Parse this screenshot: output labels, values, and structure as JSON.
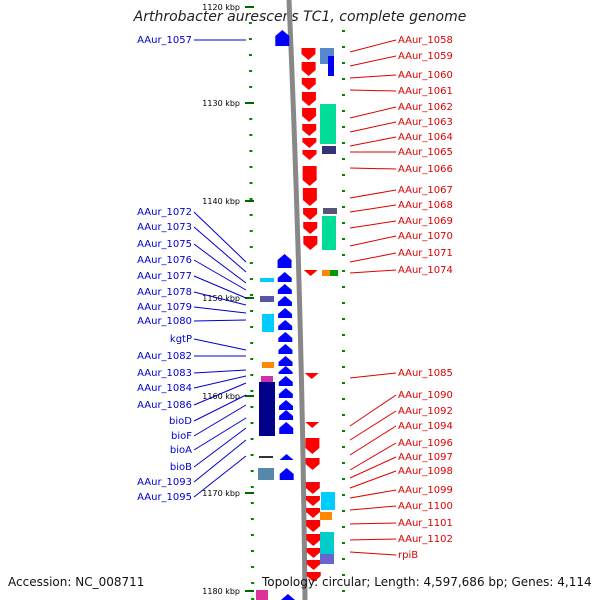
{
  "title": "Arthrobacter aurescens TC1, complete genome",
  "footer": {
    "accession": "Accession: NC_008711",
    "topology": "Topology: circular; Length: 4,597,686 bp; Genes: 4,114"
  },
  "ticks": [
    "1120 kbp",
    "1130 kbp",
    "1140 kbp",
    "1150 kbp",
    "1160 kbp",
    "1170 kbp",
    "1180 kbp"
  ],
  "left_genes": [
    "AAur_1057",
    "AAur_1072",
    "AAur_1073",
    "AAur_1075",
    "AAur_1076",
    "AAur_1077",
    "AAur_1078",
    "AAur_1079",
    "AAur_1080",
    "kgtP",
    "AAur_1082",
    "AAur_1083",
    "AAur_1084",
    "AAur_1086",
    "bioD",
    "bioF",
    "bioA",
    "bioB",
    "AAur_1093",
    "AAur_1095"
  ],
  "right_genes": [
    "AAur_1058",
    "AAur_1059",
    "AAur_1060",
    "AAur_1061",
    "AAur_1062",
    "AAur_1063",
    "AAur_1064",
    "AAur_1065",
    "AAur_1066",
    "AAur_1067",
    "AAur_1068",
    "AAur_1069",
    "AAur_1070",
    "AAur_1071",
    "AAur_1074",
    "AAur_1085",
    "AAur_1090",
    "AAur_1092",
    "AAur_1094",
    "AAur_1096",
    "AAur_1097",
    "AAur_1098",
    "AAur_1099",
    "AAur_1100",
    "AAur_1101",
    "AAur_1102",
    "rpiB"
  ],
  "colors": {
    "forward": "#ff0000",
    "reverse": "#0000ff",
    "backbone": "#888888",
    "left_label": "#0000cc",
    "right_label": "#dd0000"
  }
}
